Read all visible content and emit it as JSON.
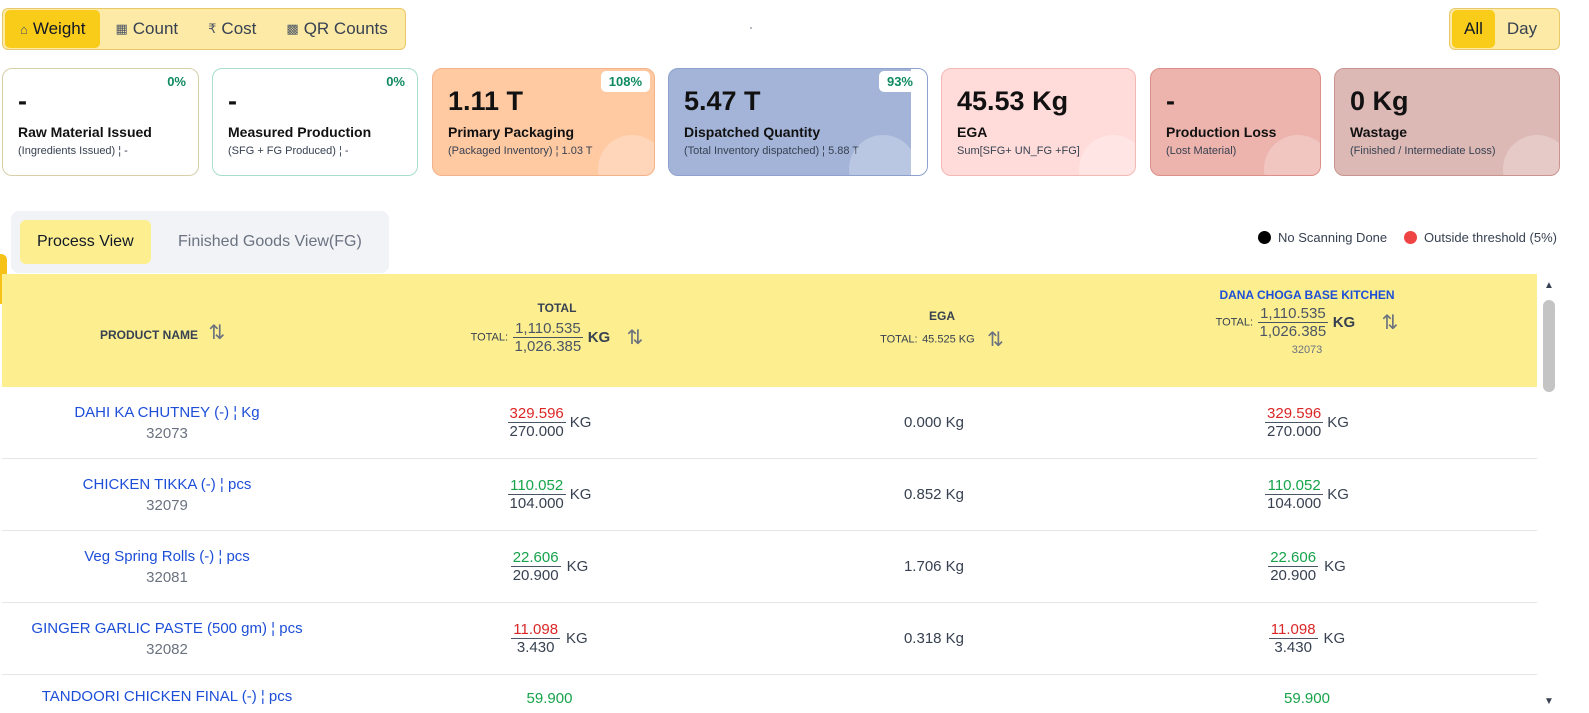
{
  "modes": [
    {
      "label": "Weight",
      "icon": "weight-icon",
      "glyph": "⌂",
      "active": true
    },
    {
      "label": "Count",
      "icon": "calculator-icon",
      "glyph": "▦",
      "active": false
    },
    {
      "label": "Cost",
      "icon": "rupee-icon",
      "glyph": "₹",
      "active": false
    },
    {
      "label": "QR Counts",
      "icon": "qr-code-icon",
      "glyph": "▩",
      "active": false
    }
  ],
  "range": {
    "all": "All",
    "day": "Day",
    "active": "All"
  },
  "cards": [
    {
      "value": "-",
      "title": "Raw Material Issued",
      "sub": "(Ingredients Issued) ¦ -",
      "pct": "0%"
    },
    {
      "value": "-",
      "title": "Measured Production",
      "sub": "(SFG + FG Produced) ¦ -",
      "pct": "0%"
    },
    {
      "value": "1.11 T",
      "title": "Primary Packaging",
      "sub": "(Packaged Inventory) ¦ 1.03 T",
      "pct": "108%"
    },
    {
      "value": "5.47 T",
      "title": "Dispatched Quantity",
      "sub": "(Total Inventory dispatched) ¦ 5.88 T",
      "pct": "93%"
    },
    {
      "value": "45.53 Kg",
      "title": "EGA",
      "sub": "Sum[SFG+ UN_FG +FG]"
    },
    {
      "value": "-",
      "title": "Production Loss",
      "sub": "(Lost Material)"
    },
    {
      "value": "0 Kg",
      "title": "Wastage",
      "sub": "(Finished / Intermediate Loss)"
    }
  ],
  "views": {
    "process": "Process View",
    "fg": "Finished Goods View(FG)"
  },
  "legend": {
    "no_scan": "No Scanning Done",
    "threshold": "Outside threshold (5%)",
    "no_scan_color": "#000000",
    "threshold_color": "#ef4444"
  },
  "table": {
    "headers": {
      "product": "PRODUCT NAME",
      "total": {
        "label": "TOTAL",
        "prefix": "TOTAL:",
        "num": "1,110.535",
        "den": "1,026.385",
        "unit": "KG"
      },
      "ega": {
        "label": "EGA",
        "prefix": "TOTAL:",
        "value": "45.525 KG"
      },
      "kitchen": {
        "label": "DANA CHOGA BASE KITCHEN",
        "prefix": "TOTAL:",
        "num": "1,110.535",
        "den": "1,026.385",
        "unit": "KG",
        "code": "32073"
      }
    },
    "rows": [
      {
        "name": "DAHI KA CHUTNEY (-) ¦ Kg",
        "code": "32073",
        "num": "329.596",
        "den": "270.000",
        "status": "red",
        "unit": "KG",
        "ega": "0.000 Kg"
      },
      {
        "name": "CHICKEN TIKKA (-) ¦ pcs",
        "code": "32079",
        "num": "110.052",
        "den": "104.000",
        "status": "green",
        "unit": "KG",
        "ega": "0.852 Kg"
      },
      {
        "name": "Veg Spring Rolls (-) ¦ pcs",
        "code": "32081",
        "num": "22.606",
        "den": "20.900",
        "status": "green",
        "unit": "KG",
        "ega": "1.706 Kg"
      },
      {
        "name": "GINGER GARLIC PASTE (500 gm) ¦ pcs",
        "code": "32082",
        "num": "11.098",
        "den": "3.430",
        "status": "red",
        "unit": "KG",
        "ega": "0.318 Kg"
      },
      {
        "name": "TANDOORI CHICKEN FINAL (-) ¦ pcs",
        "code": "",
        "num": "59.900",
        "den": "",
        "status": "green",
        "unit": "",
        "ega": ""
      }
    ]
  }
}
